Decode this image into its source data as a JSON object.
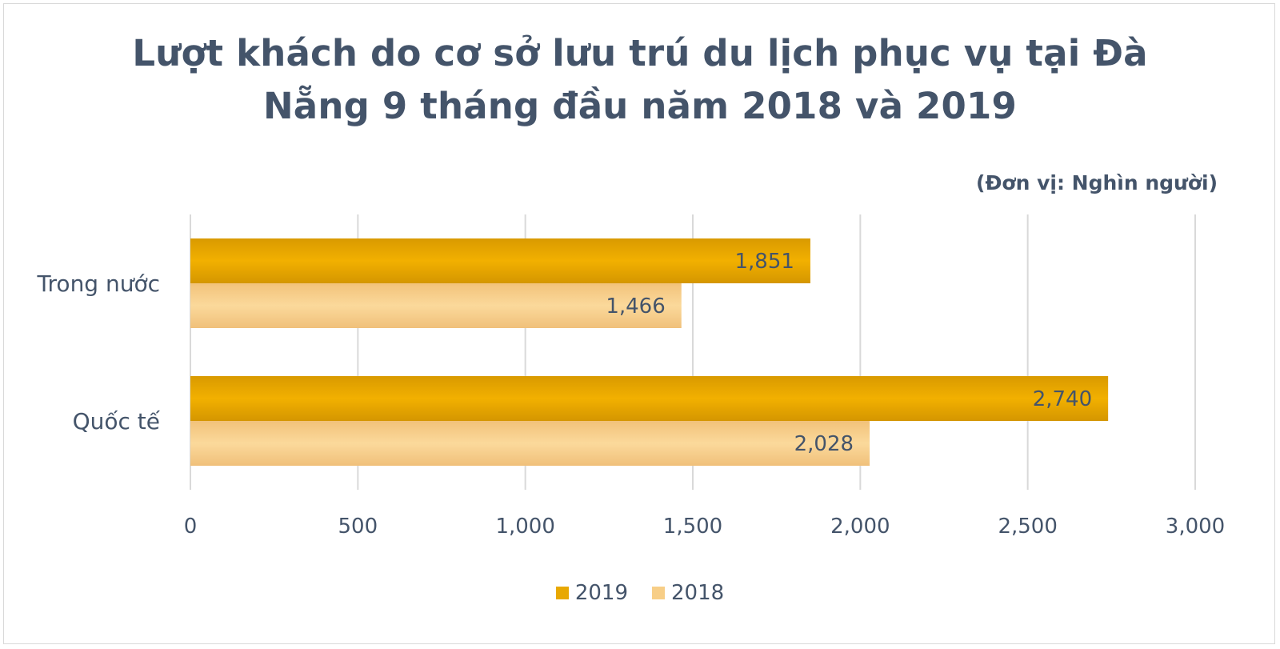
{
  "chart_data": {
    "type": "bar",
    "orientation": "horizontal",
    "title_lines": [
      "Lượt khách do cơ sở lưu trú du lịch phục vụ tại Đà",
      "Nẵng 9 tháng đầu năm 2018 và 2019"
    ],
    "unit_note": "(Đơn vị: Nghìn người)",
    "categories": [
      "Trong nước",
      "Quốc tế"
    ],
    "series": [
      {
        "name": "2019",
        "values": [
          1851,
          2740
        ],
        "value_labels": [
          "1,851",
          "2,740"
        ],
        "color": "#e8a802"
      },
      {
        "name": "2018",
        "values": [
          1466,
          2028
        ],
        "value_labels": [
          "1,466",
          "2,028"
        ],
        "color": "#f7ce87"
      }
    ],
    "xlim": [
      0,
      3000
    ],
    "x_ticks": [
      0,
      500,
      1000,
      1500,
      2000,
      2500,
      3000
    ],
    "x_tick_labels": [
      "0",
      "500",
      "1,000",
      "1,500",
      "2,000",
      "2,500",
      "3,000"
    ],
    "grid": true,
    "legend_position": "bottom"
  }
}
